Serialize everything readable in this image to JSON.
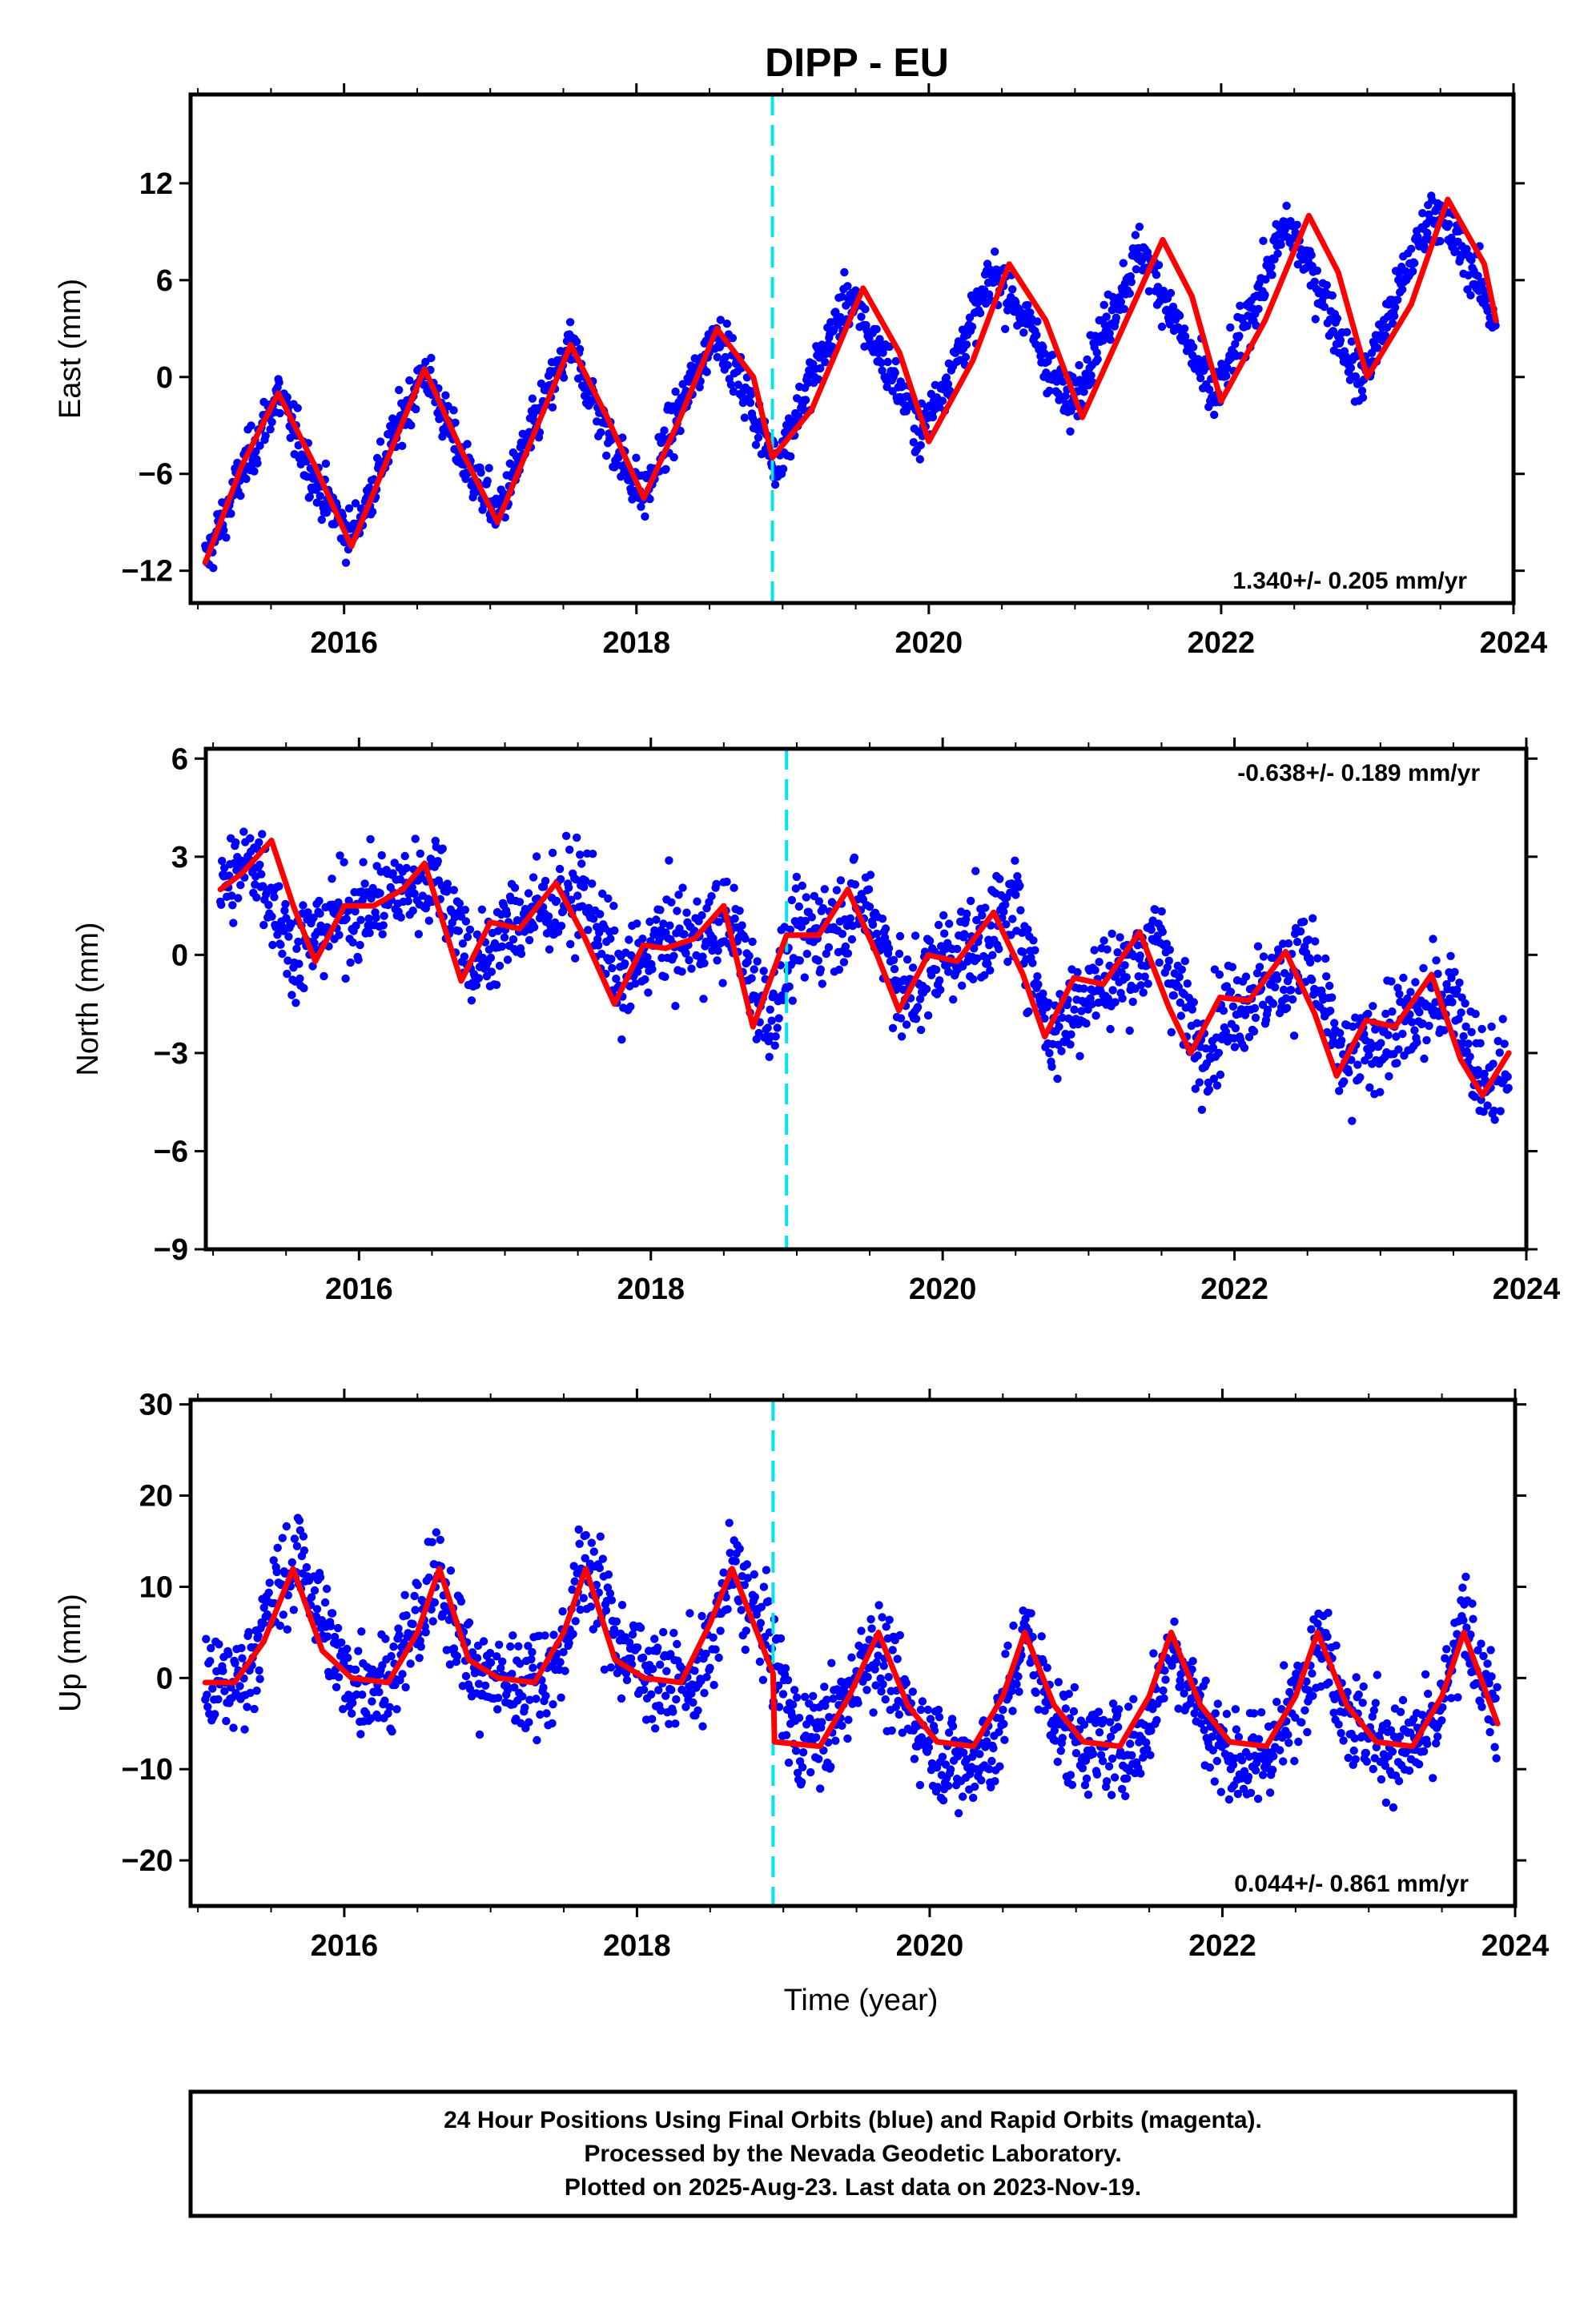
{
  "chart_data": [
    {
      "type": "scatter",
      "title": "DIPP - EU",
      "xlabel": "",
      "ylabel": "East (mm)",
      "xlim": [
        2014.95,
        2024.0
      ],
      "ylim": [
        -14,
        17.5
      ],
      "xticks": [
        2016,
        2018,
        2020,
        2022,
        2024
      ],
      "yticks": [
        -12,
        -6,
        0,
        6,
        12
      ],
      "rate_label": "1.340+/- 0.205 mm/yr",
      "rate_position": "bottom-right",
      "equipment_change_year": 2018.93,
      "data_range": [
        2015.05,
        2023.88
      ],
      "grid": false,
      "series": [
        {
          "kind": "points",
          "color": "#0000ff",
          "description_level": "daily positions",
          "envelope_halfwidth_mm": 1.6,
          "x": [
            2015.05,
            2015.3,
            2015.55,
            2015.8,
            2016.05,
            2016.3,
            2016.55,
            2016.8,
            2017.05,
            2017.3,
            2017.55,
            2017.8,
            2018.05,
            2018.3,
            2018.55,
            2018.8,
            2018.95,
            2019.2,
            2019.45,
            2019.7,
            2019.95,
            2020.2,
            2020.45,
            2020.7,
            2020.95,
            2021.2,
            2021.45,
            2021.95,
            2022.2,
            2022.45,
            2022.7,
            2022.95,
            2023.2,
            2023.45,
            2023.7,
            2023.88
          ],
          "y": [
            -11.5,
            -6.0,
            -1.0,
            -6.5,
            -10.0,
            -4.5,
            0.5,
            -5.0,
            -8.5,
            -3.0,
            2.0,
            -3.5,
            -7.5,
            -2.0,
            3.0,
            -2.0,
            -5.5,
            0.0,
            5.0,
            1.0,
            -3.5,
            1.5,
            6.5,
            3.0,
            -2.0,
            3.0,
            8.0,
            -1.5,
            4.0,
            9.5,
            5.0,
            -0.5,
            5.0,
            10.5,
            7.0,
            3.5
          ]
        },
        {
          "kind": "model",
          "color": "#ff0000",
          "x": [
            2015.05,
            2015.3,
            2015.55,
            2015.8,
            2016.05,
            2016.3,
            2016.55,
            2016.8,
            2017.05,
            2017.3,
            2017.55,
            2017.8,
            2018.05,
            2018.3,
            2018.55,
            2018.8,
            2018.93,
            2019.2,
            2019.55,
            2019.8,
            2020.0,
            2020.3,
            2020.55,
            2020.8,
            2021.05,
            2021.3,
            2021.6,
            2021.8,
            2022.0,
            2022.3,
            2022.6,
            2022.8,
            2023.0,
            2023.3,
            2023.55,
            2023.8,
            2023.88
          ],
          "y": [
            -11.5,
            -5.5,
            -1.0,
            -5.5,
            -10.5,
            -5.0,
            0.5,
            -4.5,
            -9.0,
            -3.5,
            2.0,
            -2.5,
            -7.5,
            -2.5,
            3.0,
            0.0,
            -5.0,
            -2.0,
            5.5,
            1.5,
            -4.0,
            1.0,
            7.0,
            3.5,
            -2.5,
            2.5,
            8.5,
            5.0,
            -1.5,
            3.5,
            10.0,
            6.5,
            0.0,
            4.5,
            11.0,
            7.0,
            3.5
          ]
        }
      ]
    },
    {
      "type": "scatter",
      "title": "",
      "xlabel": "",
      "ylabel": "North (mm)",
      "xlim": [
        2014.95,
        2024.0
      ],
      "ylim": [
        -9,
        6.3
      ],
      "xticks": [
        2016,
        2018,
        2020,
        2022,
        2024
      ],
      "yticks": [
        -9,
        -6,
        -3,
        0,
        3,
        6
      ],
      "rate_label": "-0.638+/- 0.189 mm/yr",
      "rate_position": "top-right",
      "equipment_change_year": 2018.93,
      "grid": false,
      "series": [
        {
          "kind": "points",
          "color": "#0000ff",
          "description_level": "daily positions",
          "envelope_halfwidth_mm": 1.5,
          "x": [
            2015.05,
            2015.3,
            2015.55,
            2015.8,
            2016.05,
            2016.3,
            2016.55,
            2016.8,
            2017.05,
            2017.3,
            2017.55,
            2017.8,
            2018.05,
            2018.3,
            2018.55,
            2018.8,
            2019.0,
            2019.25,
            2019.5,
            2019.75,
            2020.0,
            2020.25,
            2020.5,
            2020.75,
            2021.0,
            2021.25,
            2021.5,
            2021.75,
            2022.0,
            2022.25,
            2022.5,
            2022.75,
            2023.0,
            2023.25,
            2023.5,
            2023.7,
            2023.88
          ],
          "y": [
            2.0,
            3.0,
            0.0,
            1.0,
            1.5,
            2.0,
            2.5,
            -0.5,
            1.0,
            1.5,
            2.0,
            -1.0,
            0.5,
            0.5,
            1.0,
            -2.0,
            0.5,
            1.0,
            1.5,
            -1.5,
            0.0,
            0.5,
            1.5,
            -2.5,
            -1.0,
            -0.5,
            0.5,
            -3.0,
            -1.5,
            -1.0,
            0.0,
            -3.5,
            -2.5,
            -2.0,
            -1.0,
            -4.0,
            -3.5
          ]
        },
        {
          "kind": "model",
          "color": "#ff0000",
          "x": [
            2015.05,
            2015.2,
            2015.4,
            2015.55,
            2015.7,
            2015.9,
            2016.1,
            2016.3,
            2016.45,
            2016.7,
            2016.9,
            2017.1,
            2017.35,
            2017.55,
            2017.75,
            2017.95,
            2018.1,
            2018.3,
            2018.5,
            2018.7,
            2018.93,
            2019.15,
            2019.35,
            2019.55,
            2019.7,
            2019.9,
            2020.1,
            2020.35,
            2020.55,
            2020.7,
            2020.9,
            2021.1,
            2021.35,
            2021.55,
            2021.7,
            2021.9,
            2022.1,
            2022.35,
            2022.55,
            2022.7,
            2022.9,
            2023.1,
            2023.35,
            2023.55,
            2023.7,
            2023.88
          ],
          "y": [
            2.0,
            2.5,
            3.5,
            1.5,
            -0.2,
            1.5,
            1.5,
            2.0,
            2.8,
            -0.8,
            1.0,
            0.8,
            2.2,
            0.5,
            -1.5,
            0.3,
            0.2,
            0.5,
            1.5,
            -2.2,
            0.6,
            0.6,
            2.0,
            0.0,
            -1.7,
            0.0,
            -0.2,
            1.3,
            -0.6,
            -2.5,
            -0.7,
            -0.9,
            0.7,
            -1.6,
            -3.0,
            -1.3,
            -1.4,
            0.1,
            -1.8,
            -3.7,
            -2.0,
            -2.2,
            -0.6,
            -3.2,
            -4.3,
            -3.0
          ]
        }
      ]
    },
    {
      "type": "scatter",
      "title": "",
      "xlabel": "Time (year)",
      "ylabel": "Up (mm)",
      "xlim": [
        2014.95,
        2024.0
      ],
      "ylim": [
        -25,
        30.5
      ],
      "xticks": [
        2016,
        2018,
        2020,
        2022,
        2024
      ],
      "yticks": [
        -20,
        -10,
        0,
        10,
        20,
        30
      ],
      "rate_label": "0.044+/- 0.861 mm/yr",
      "rate_position": "bottom-right",
      "equipment_change_year": 2018.93,
      "grid": false,
      "series": [
        {
          "kind": "points",
          "color": "#0000ff",
          "description_level": "daily positions",
          "envelope_halfwidth_mm": 5.5,
          "x": [
            2015.05,
            2015.3,
            2015.55,
            2015.7,
            2016.0,
            2016.3,
            2016.65,
            2016.9,
            2017.2,
            2017.45,
            2017.65,
            2017.9,
            2018.2,
            2018.45,
            2018.65,
            2018.9,
            2019.1,
            2019.35,
            2019.6,
            2019.9,
            2020.2,
            2020.45,
            2020.65,
            2020.9,
            2021.2,
            2021.45,
            2021.65,
            2021.95,
            2022.2,
            2022.45,
            2022.65,
            2022.9,
            2023.2,
            2023.45,
            2023.65,
            2023.88
          ],
          "y": [
            -1.0,
            -0.5,
            10.0,
            13.0,
            0.0,
            -0.5,
            11.0,
            0.0,
            -0.5,
            1.0,
            13.0,
            3.0,
            -0.5,
            0.0,
            12.0,
            4.0,
            -7.0,
            -5.0,
            4.0,
            -5.0,
            -10.0,
            -7.0,
            5.0,
            -6.0,
            -8.0,
            -7.0,
            4.0,
            -7.0,
            -10.0,
            -5.0,
            5.0,
            -5.0,
            -8.0,
            -6.0,
            6.0,
            -4.0
          ]
        },
        {
          "kind": "model",
          "color": "#ff0000",
          "x": [
            2015.05,
            2015.25,
            2015.45,
            2015.65,
            2015.85,
            2016.05,
            2016.3,
            2016.5,
            2016.65,
            2016.85,
            2017.05,
            2017.3,
            2017.5,
            2017.65,
            2017.85,
            2018.05,
            2018.3,
            2018.5,
            2018.65,
            2018.93,
            2018.94,
            2019.25,
            2019.45,
            2019.65,
            2019.85,
            2020.05,
            2020.3,
            2020.5,
            2020.65,
            2020.85,
            2021.05,
            2021.3,
            2021.5,
            2021.65,
            2021.85,
            2022.05,
            2022.3,
            2022.5,
            2022.65,
            2022.85,
            2023.05,
            2023.3,
            2023.5,
            2023.65,
            2023.88
          ],
          "y": [
            -0.5,
            -0.5,
            4.0,
            12.0,
            3.0,
            0.0,
            -0.5,
            5.0,
            12.0,
            2.0,
            0.0,
            -0.5,
            5.0,
            12.0,
            2.0,
            0.0,
            -0.5,
            6.0,
            12.0,
            0.5,
            -7.0,
            -7.5,
            -2.0,
            5.0,
            -3.0,
            -7.0,
            -7.5,
            -2.0,
            5.0,
            -3.0,
            -7.0,
            -7.5,
            -2.0,
            5.0,
            -3.0,
            -7.0,
            -7.5,
            -2.0,
            5.0,
            -3.0,
            -7.0,
            -7.5,
            -2.0,
            5.0,
            -5.0
          ]
        }
      ]
    }
  ],
  "footer": {
    "line1": "24 Hour Positions Using Final Orbits (blue) and Rapid Orbits (magenta).",
    "line2": "Processed by the Nevada Geodetic Laboratory.",
    "line3": "Plotted on 2025-Aug-23. Last data on 2023-Nov-19."
  },
  "colors": {
    "points": "#0000ff",
    "model": "#ff0000",
    "equipment_change": "#00e5ee",
    "frame": "#000000"
  }
}
